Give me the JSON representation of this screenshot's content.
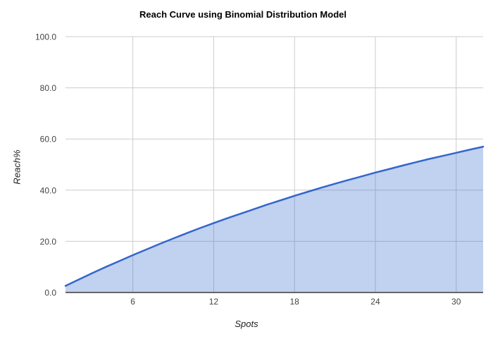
{
  "chart_data": {
    "type": "area",
    "title": "Reach Curve using Binomial Distribution Model",
    "xlabel": "Spots",
    "ylabel": "Reach%",
    "x": [
      1,
      2,
      3,
      4,
      5,
      6,
      7,
      8,
      9,
      10,
      11,
      12,
      13,
      14,
      15,
      16,
      17,
      18,
      19,
      20,
      21,
      22,
      23,
      24,
      25,
      26,
      27,
      28,
      29,
      30,
      31,
      32
    ],
    "values": [
      2.6,
      5.1,
      7.6,
      10.0,
      12.3,
      14.6,
      16.8,
      19.0,
      21.1,
      23.2,
      25.2,
      27.1,
      29.0,
      30.8,
      32.6,
      34.4,
      36.1,
      37.8,
      39.4,
      41.0,
      42.5,
      44.0,
      45.4,
      46.9,
      48.2,
      49.6,
      50.9,
      52.2,
      53.4,
      54.6,
      55.8,
      57.0
    ],
    "x_ticks": [
      6,
      12,
      18,
      24,
      30
    ],
    "x_tick_labels": [
      "6",
      "12",
      "18",
      "24",
      "30"
    ],
    "y_ticks": [
      0,
      20,
      40,
      60,
      80,
      100
    ],
    "y_tick_labels": [
      "0.0",
      "20.0",
      "40.0",
      "60.0",
      "80.0",
      "100.0"
    ],
    "xlim": [
      1,
      32
    ],
    "ylim": [
      0,
      100
    ],
    "grid": true,
    "legend": "none"
  },
  "colors": {
    "line": "#3366cc",
    "fill": "#3366cc",
    "fill_opacity": 0.3,
    "gridline": "#cccccc",
    "baseline": "#666666",
    "tick_label": "#444444",
    "axis_title": "#222222",
    "title": "#000000",
    "background": "#ffffff"
  }
}
